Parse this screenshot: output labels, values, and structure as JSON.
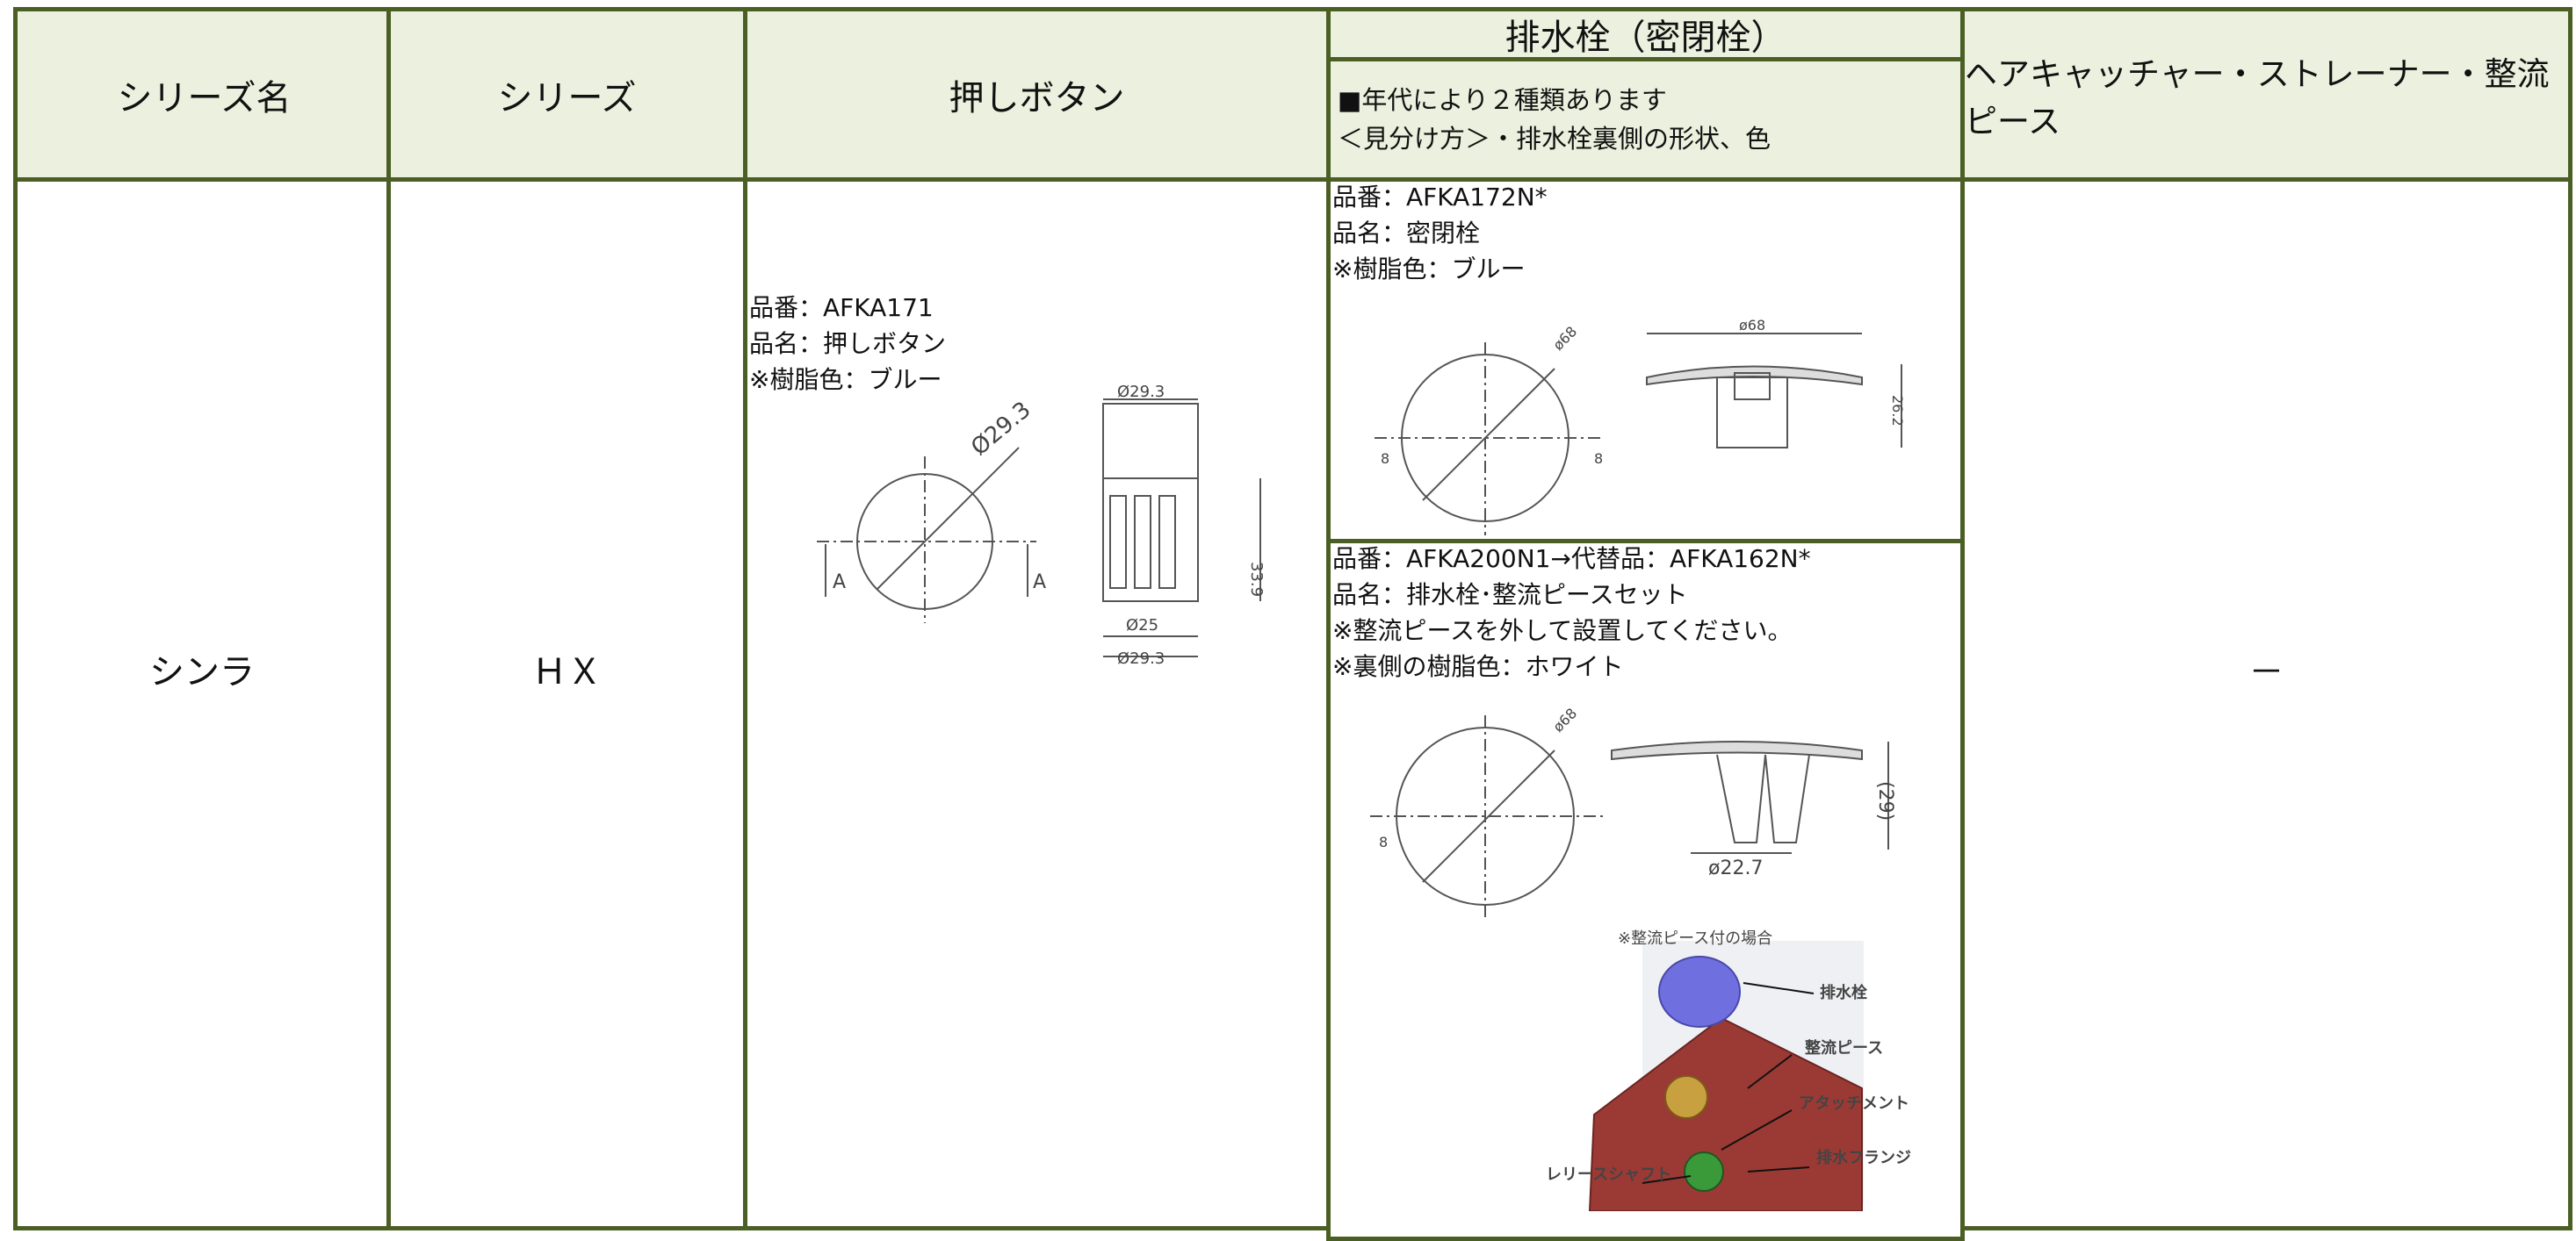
{
  "header": {
    "series_name": "シリーズ名",
    "series": "シリーズ",
    "push_button": "押しボタン",
    "drain_plug": {
      "title": "排水栓（密閉栓）",
      "notes": [
        "■年代により２種類あります",
        "＜見分け方＞・排水栓裏側の形状、色"
      ]
    },
    "hair_catcher": "ヘアキャッチャー・ストレーナー・整流ピース"
  },
  "row": {
    "series_name": "シンラ",
    "series": "ＨＸ",
    "push_button": {
      "lines": [
        "品番：AFKA171",
        "品名：押しボタン",
        "※樹脂色：ブルー"
      ],
      "drawing_labels": [
        "Ø29.3",
        "A",
        "A",
        "Ø29.3",
        "33.9",
        "Ø25",
        "Ø29.3"
      ]
    },
    "drain_plug_1": {
      "lines": [
        "品番：AFKA172N*",
        "品名：密閉栓",
        "※樹脂色：ブルー"
      ],
      "drawing_labels": [
        "ø68",
        "8",
        "8",
        "ø68",
        "26.2"
      ]
    },
    "drain_plug_2": {
      "lines": [
        "品番：AFKA200N1→代替品：AFKA162N*",
        "品名：排水栓･整流ピースセット",
        "※整流ピースを外して設置してください。",
        "※裏側の樹脂色：ホワイト"
      ],
      "drawing_labels": [
        "ø68",
        "8",
        "(29)",
        "ø22.7"
      ],
      "illustration_labels": [
        "※整流ピース付の場合",
        "排水栓",
        "整流ピース",
        "アタッチメント",
        "排水フランジ",
        "レリースシャフト"
      ]
    },
    "hair_catcher": "－"
  }
}
